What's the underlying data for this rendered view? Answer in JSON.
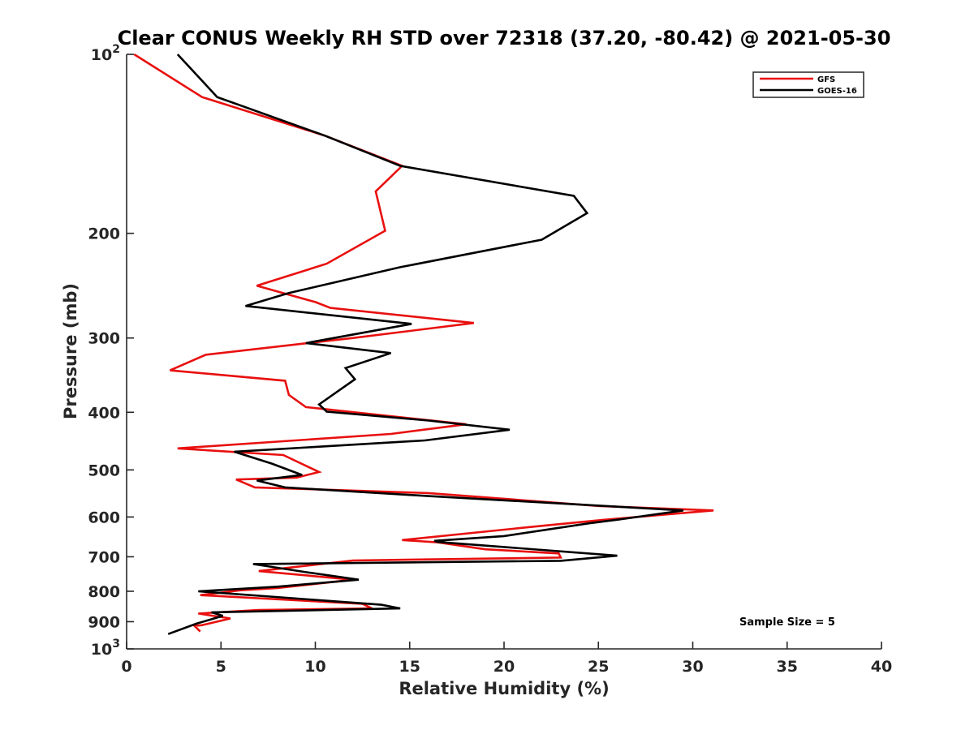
{
  "chart_data": {
    "type": "line",
    "title": "Clear CONUS Weekly RH STD over 72318 (37.20, -80.42) @ 2021-05-30",
    "xlabel": "Relative Humidity (%)",
    "ylabel": "Pressure (mb)",
    "xlim": [
      0,
      40
    ],
    "ylim": [
      100,
      1000
    ],
    "y_scale": "log",
    "y_reversed": true,
    "grid": false,
    "legend_position": "top-right",
    "x_ticks": [
      0,
      5,
      10,
      15,
      20,
      25,
      30,
      35,
      40
    ],
    "x_tick_labels": [
      "0",
      "5",
      "10",
      "15",
      "20",
      "25",
      "30",
      "35",
      "40"
    ],
    "y_ticks": [
      100,
      200,
      300,
      400,
      500,
      600,
      700,
      800,
      900,
      1000
    ],
    "y_tick_labels": [
      {
        "base": "10",
        "exp": "2"
      },
      {
        "base": "200",
        "exp": ""
      },
      {
        "base": "300",
        "exp": ""
      },
      {
        "base": "400",
        "exp": ""
      },
      {
        "base": "500",
        "exp": ""
      },
      {
        "base": "600",
        "exp": ""
      },
      {
        "base": "700",
        "exp": ""
      },
      {
        "base": "800",
        "exp": ""
      },
      {
        "base": "900",
        "exp": ""
      },
      {
        "base": "10",
        "exp": "3"
      }
    ],
    "annotation": "Sample Size = 5",
    "series": [
      {
        "name": "GFS",
        "color": "#e8100f",
        "x": [
          0.4,
          4.0,
          10.5,
          14.6,
          13.2,
          13.7,
          10.6,
          6.9,
          10.0,
          10.8,
          18.4,
          12.0,
          4.2,
          2.3,
          8.4,
          8.6,
          9.5,
          18.0,
          14.0,
          2.7,
          8.3,
          10.2,
          9.0,
          5.8,
          6.8,
          16.0,
          25.0,
          31.1,
          27.0,
          25.2,
          22.0,
          14.6,
          16.5,
          19.0,
          22.9,
          23.0,
          12.0,
          7.0,
          12.0,
          8.0,
          6.0,
          3.9,
          12.5,
          13.0,
          7.0,
          3.8,
          5.5,
          4.0,
          3.6,
          3.9
        ],
        "y": [
          100,
          118,
          137,
          154,
          170,
          198,
          225,
          245,
          261,
          267,
          283,
          300,
          320,
          340,
          354,
          374,
          392,
          419,
          435,
          460,
          472,
          504,
          515,
          519,
          535,
          547,
          575,
          585,
          600,
          607,
          621,
          656,
          662,
          680,
          691,
          702,
          710,
          740,
          765,
          790,
          797,
          812,
          840,
          855,
          860,
          872,
          889,
          912,
          915,
          935
        ]
      },
      {
        "name": "GOES-16",
        "color": "#000000",
        "x": [
          2.7,
          4.8,
          10.5,
          14.5,
          23.7,
          24.4,
          22.0,
          14.5,
          10.5,
          8.6,
          6.3,
          15.1,
          9.5,
          14.0,
          11.6,
          12.1,
          10.2,
          10.6,
          16.0,
          20.3,
          15.8,
          5.7,
          7.7,
          9.3,
          6.9,
          8.4,
          15.9,
          29.5,
          26.4,
          24.5,
          20.0,
          16.3,
          16.5,
          26.0,
          23.0,
          6.7,
          9.5,
          12.3,
          8.0,
          3.8,
          13.5,
          14.5,
          4.5,
          5.1,
          3.7,
          2.2
        ],
        "y": [
          100,
          118,
          137,
          154,
          173,
          185,
          205,
          228,
          244,
          252,
          265,
          284,
          306,
          318,
          337,
          352,
          388,
          399,
          413,
          428,
          446,
          466,
          488,
          510,
          521,
          535,
          553,
          585,
          604,
          615,
          646,
          658,
          661,
          697,
          711,
          720,
          743,
          765,
          786,
          800,
          843,
          855,
          868,
          880,
          907,
          944
        ]
      }
    ]
  }
}
